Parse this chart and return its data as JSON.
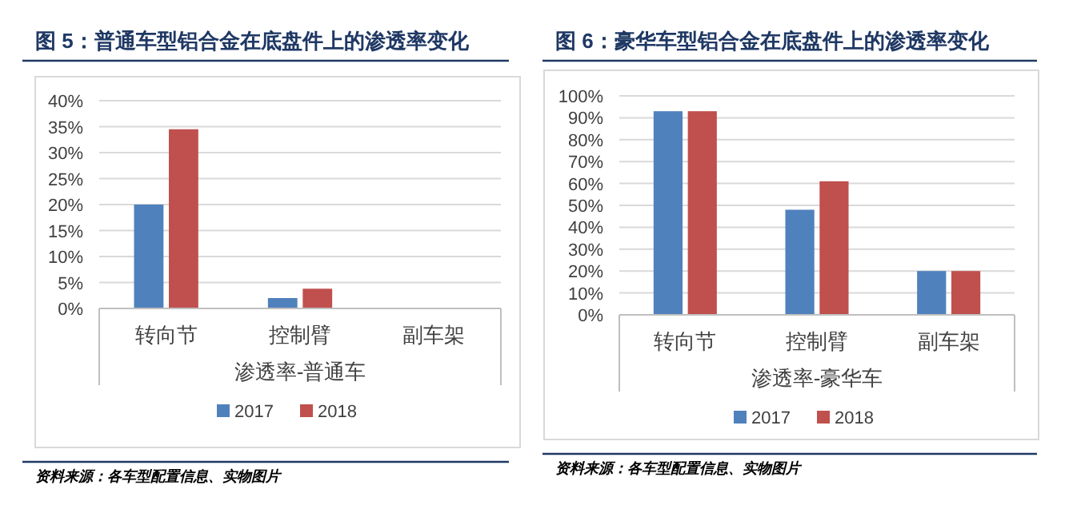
{
  "chart_data": [
    {
      "type": "bar",
      "title": "图 5：普通车型铝合金在底盘件上的渗透率变化",
      "xlabel": "渗透率-普通车",
      "categories": [
        "转向节",
        "控制臂",
        "副车架"
      ],
      "series": [
        {
          "name": "2017",
          "color": "#4f81bd",
          "values": [
            20,
            2,
            0
          ]
        },
        {
          "name": "2018",
          "color": "#c0504d",
          "values": [
            34.5,
            3.8,
            0
          ]
        }
      ],
      "ylim": [
        0,
        40
      ],
      "yticks": [
        {
          "value": 0,
          "label": "0%"
        },
        {
          "value": 5,
          "label": "5%"
        },
        {
          "value": 10,
          "label": "10%"
        },
        {
          "value": 15,
          "label": "15%"
        },
        {
          "value": 20,
          "label": "20%"
        },
        {
          "value": 25,
          "label": "25%"
        },
        {
          "value": 30,
          "label": "30%"
        },
        {
          "value": 35,
          "label": "35%"
        },
        {
          "value": 40,
          "label": "40%"
        }
      ],
      "grid": "y",
      "legend": "bottom",
      "annotations": [
        "资料来源：各车型配置信息、实物图片"
      ]
    },
    {
      "type": "bar",
      "title": "图 6：豪华车型铝合金在底盘件上的渗透率变化",
      "xlabel": "渗透率-豪华车",
      "categories": [
        "转向节",
        "控制臂",
        "副车架"
      ],
      "series": [
        {
          "name": "2017",
          "color": "#4f81bd",
          "values": [
            93,
            48,
            20
          ]
        },
        {
          "name": "2018",
          "color": "#c0504d",
          "values": [
            93,
            61,
            20
          ]
        }
      ],
      "ylim": [
        0,
        100
      ],
      "yticks": [
        {
          "value": 0,
          "label": "0%"
        },
        {
          "value": 10,
          "label": "10%"
        },
        {
          "value": 20,
          "label": "20%"
        },
        {
          "value": 30,
          "label": "30%"
        },
        {
          "value": 40,
          "label": "40%"
        },
        {
          "value": 50,
          "label": "50%"
        },
        {
          "value": 60,
          "label": "60%"
        },
        {
          "value": 70,
          "label": "70%"
        },
        {
          "value": 80,
          "label": "80%"
        },
        {
          "value": 90,
          "label": "90%"
        },
        {
          "value": 100,
          "label": "100%"
        }
      ],
      "grid": "y",
      "legend": "bottom",
      "annotations": [
        "资料来源：各车型配置信息、实物图片"
      ]
    }
  ]
}
